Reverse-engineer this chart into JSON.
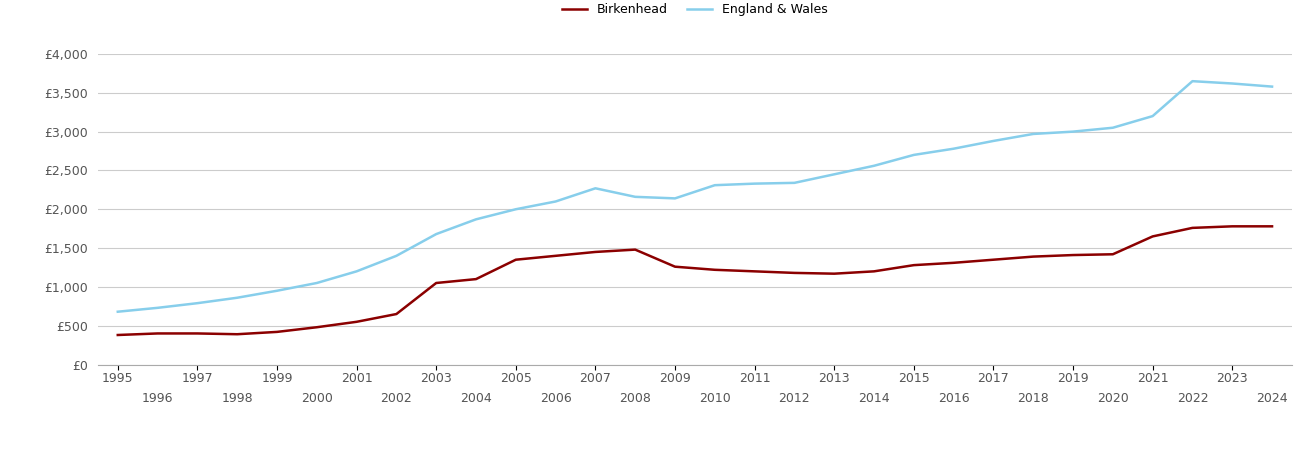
{
  "birkenhead_years": [
    1995,
    1996,
    1997,
    1998,
    1999,
    2000,
    2001,
    2002,
    2003,
    2004,
    2005,
    2006,
    2007,
    2008,
    2009,
    2010,
    2011,
    2012,
    2013,
    2014,
    2015,
    2016,
    2017,
    2018,
    2019,
    2020,
    2021,
    2022,
    2023,
    2024
  ],
  "birkenhead_values": [
    380,
    400,
    400,
    390,
    420,
    480,
    550,
    650,
    1050,
    1100,
    1350,
    1400,
    1450,
    1480,
    1260,
    1220,
    1200,
    1180,
    1170,
    1200,
    1280,
    1310,
    1350,
    1390,
    1410,
    1420,
    1650,
    1760,
    1780,
    1780
  ],
  "england_years": [
    1995,
    1996,
    1997,
    1998,
    1999,
    2000,
    2001,
    2002,
    2003,
    2004,
    2005,
    2006,
    2007,
    2008,
    2009,
    2010,
    2011,
    2012,
    2013,
    2014,
    2015,
    2016,
    2017,
    2018,
    2019,
    2020,
    2021,
    2022,
    2023,
    2024
  ],
  "england_values": [
    680,
    730,
    790,
    860,
    950,
    1050,
    1200,
    1400,
    1680,
    1870,
    2000,
    2100,
    2270,
    2160,
    2140,
    2310,
    2330,
    2340,
    2450,
    2560,
    2700,
    2780,
    2880,
    2970,
    3000,
    3050,
    3200,
    3650,
    3620,
    3580
  ],
  "birkenhead_color": "#8B0000",
  "england_color": "#87CEEB",
  "background_color": "#ffffff",
  "grid_color": "#cccccc",
  "ylim": [
    0,
    4000
  ],
  "yticks": [
    0,
    500,
    1000,
    1500,
    2000,
    2500,
    3000,
    3500,
    4000
  ],
  "ytick_labels": [
    "£0",
    "£500",
    "£1,000",
    "£1,500",
    "£2,000",
    "£2,500",
    "£3,000",
    "£3,500",
    "£4,000"
  ],
  "xticks_odd": [
    1995,
    1997,
    1999,
    2001,
    2003,
    2005,
    2007,
    2009,
    2011,
    2013,
    2015,
    2017,
    2019,
    2021,
    2023
  ],
  "xticks_even": [
    1996,
    1998,
    2000,
    2002,
    2004,
    2006,
    2008,
    2010,
    2012,
    2014,
    2016,
    2018,
    2020,
    2022,
    2024
  ],
  "line_width": 1.8,
  "legend_birkenhead": "Birkenhead",
  "legend_england": "England & Wales",
  "xlim": [
    1994.5,
    2024.5
  ]
}
